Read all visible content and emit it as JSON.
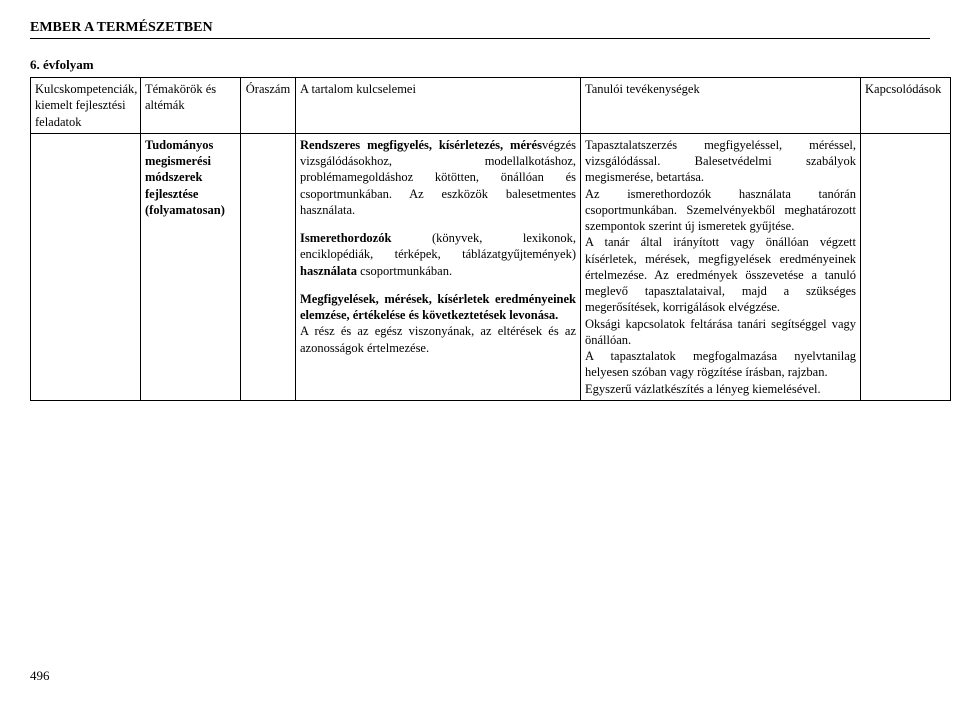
{
  "header": {
    "title": "EMBER A TERMÉSZETBEN"
  },
  "grade": "6. évfolyam",
  "table": {
    "headers": {
      "col1": "Kulcskompetenciák, kiemelt fejlesztési feladatok",
      "col2": "Témakörök és altémák",
      "col3": "Óraszám",
      "col4": "A tartalom kulcselemei",
      "col5": "Tanulói tevékenységek",
      "col6": "Kapcsolódások"
    },
    "row": {
      "col1": "",
      "col2": "Tudományos megismerési módszerek fejlesztése (folyamatosan)",
      "col3": "",
      "col4_p1_bold": "Rendszeres megfigyelés, kísérletezés, mérés",
      "col4_p1_rest": "végzés vizsgálódásokhoz, modellalkotáshoz, problémamegoldáshoz kötötten, önállóan és csoportmunkában. Az eszközök balesetmentes használata.",
      "col4_p2_bold": "Ismerethordozók",
      "col4_p2_rest1": " (könyvek, lexikonok, enciklopédiák, térképek, táblázatgyűjtemények) ",
      "col4_p2_bold2": "használata",
      "col4_p2_rest2": " csoportmunkában.",
      "col4_p3_bold": "Megfigyelések, mérések, kísérletek eredményeinek elemzése, értékelése és következtetések levonása.",
      "col4_p4": "A rész és az egész viszonyának, az eltérések és az azonosságok értelmezése.",
      "col5_text": "Tapasztalatszerzés megfigyeléssel, méréssel, vizsgálódással. Balesetvédelmi szabályok megismerése, betartása.\nAz ismerethordozók használata tanórán csoportmunkában. Szemelvényekből meghatározott szempontok szerint új ismeretek gyűjtése.\nA tanár által irányított vagy önállóan végzett kísérletek, mérések, megfigyelések eredményeinek értelmezése. Az eredmények összevetése a tanuló meglevő tapasztalataival, majd a szükséges megerősítések, korrigálások elvégzése.\nOksági kapcsolatok feltárása tanári segítséggel vagy önállóan.\nA tapasztalatok megfogalmazása nyelvtanilag helyesen szóban vagy rögzítése írásban, rajzban.\nEgyszerű vázlatkészítés a lényeg kiemelésével.",
      "col6": ""
    }
  },
  "pageNumber": "496"
}
